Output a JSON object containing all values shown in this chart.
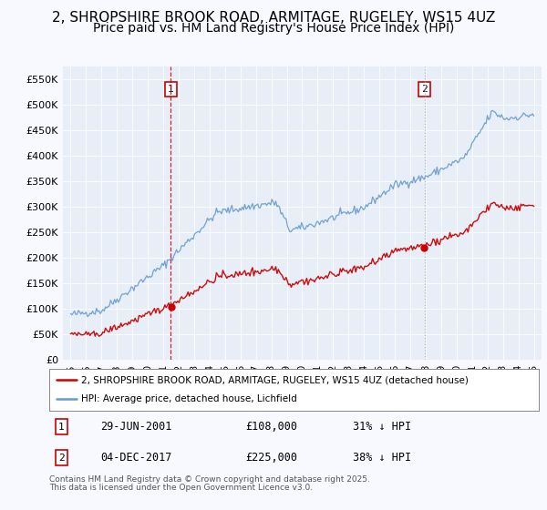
{
  "title": "2, SHROPSHIRE BROOK ROAD, ARMITAGE, RUGELEY, WS15 4UZ",
  "subtitle": "Price paid vs. HM Land Registry's House Price Index (HPI)",
  "title_fontsize": 11,
  "subtitle_fontsize": 10,
  "background_color": "#f8f8ff",
  "plot_bg_color": "#e8eef8",
  "legend_label_red": "2, SHROPSHIRE BROOK ROAD, ARMITAGE, RUGELEY, WS15 4UZ (detached house)",
  "legend_label_blue": "HPI: Average price, detached house, Lichfield",
  "marker1_date": 2001.49,
  "marker1_price": 108000,
  "marker2_date": 2017.92,
  "marker2_price": 225000,
  "footer": "Contains HM Land Registry data © Crown copyright and database right 2025.\nThis data is licensed under the Open Government Licence v3.0.",
  "ylim": [
    0,
    575000
  ],
  "yticks": [
    0,
    50000,
    100000,
    150000,
    200000,
    250000,
    300000,
    350000,
    400000,
    450000,
    500000,
    550000
  ],
  "xlim_left": 1994.5,
  "xlim_right": 2025.5,
  "red_color": "#cc0000",
  "blue_color": "#6699cc",
  "marker1_vline_color": "#cc0000",
  "marker1_vline_style": "--",
  "marker2_vline_color": "#aaaaaa",
  "marker2_vline_style": ":"
}
